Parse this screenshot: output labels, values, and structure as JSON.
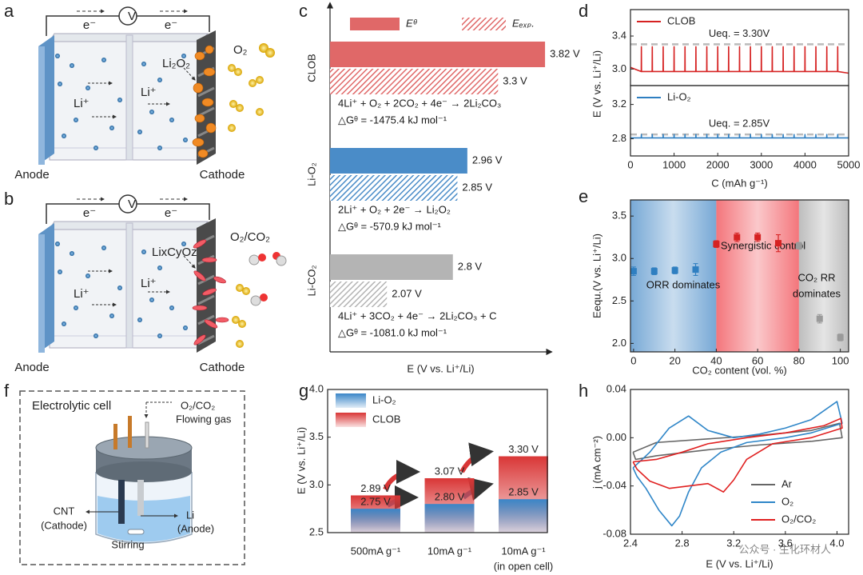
{
  "panel_labels": [
    "a",
    "b",
    "c",
    "d",
    "e",
    "f",
    "g",
    "h"
  ],
  "diagram_a": {
    "voltmeter": "V",
    "electrons": [
      "e⁻",
      "e⁻"
    ],
    "lithium_ions": [
      "Li⁺",
      "Li⁺"
    ],
    "product": "Li₂O₂",
    "gas": "O₂",
    "anode": "Anode",
    "cathode": "Cathode"
  },
  "diagram_b": {
    "voltmeter": "V",
    "electrons": [
      "e⁻",
      "e⁻"
    ],
    "lithium_ions": [
      "Li⁺",
      "Li⁺"
    ],
    "product": "LixCyOz",
    "gas": "O₂/CO₂",
    "anode": "Anode",
    "cathode": "Cathode"
  },
  "diagram_f": {
    "title": "Electrolytic cell",
    "gas": [
      "O₂/CO₂",
      "Flowing gas"
    ],
    "cathode": [
      "CNT",
      "(Cathode)"
    ],
    "anode": [
      "Li",
      "(Anode)"
    ],
    "stirring": "Stirring"
  },
  "watermark": "公众号 · 生化环材人",
  "chart_data": [
    {
      "type": "bar",
      "orientation": "horizontal",
      "categories": [
        "CLOB",
        "Li-O₂",
        "Li-CO₂"
      ],
      "category_colors": [
        "#e06868",
        "#4a8cc8",
        "#b4b4b4"
      ],
      "series": [
        {
          "name": "Eᶿ",
          "color": "#e06868",
          "values": [
            3.82,
            2.96,
            2.8
          ],
          "value_labels": [
            "3.82 V",
            "2.96 V",
            "2.8 V"
          ]
        },
        {
          "name": "Eₑₓₚ.",
          "color": "#e06868",
          "hatch": true,
          "values": [
            3.3,
            2.85,
            2.07
          ],
          "value_labels": [
            "3.3 V",
            "2.85 V",
            "2.07 V"
          ]
        }
      ],
      "annotations": [
        [
          "4Li⁺ + O₂ + 2CO₂ + 4e⁻ → 2Li₂CO₃",
          "△Gᶿ = -1475.4 kJ mol⁻¹"
        ],
        [
          "2Li⁺ + O₂ + 2e⁻ → Li₂O₂",
          "△Gᶿ = -570.9 kJ mol⁻¹"
        ],
        [
          "4Li⁺ + 3CO₂ + 4e⁻ → 2Li₂CO₃ + C",
          "△Gᶿ = -1081.0 kJ mol⁻¹"
        ]
      ],
      "xlim": [
        1.44,
        3.89
      ],
      "xlabel": "E (V vs. Li⁺/Li)"
    },
    {
      "type": "line",
      "legend": "upper left",
      "series": [
        {
          "name": "CLOB",
          "color": "#d62222",
          "x": [
            0,
            247,
            250,
            253,
            497,
            500,
            503,
            747,
            750,
            753,
            997,
            1000,
            1003,
            1247,
            1250,
            1253,
            1497,
            1500,
            1503,
            1747,
            1750,
            1753,
            1997,
            2000,
            2003,
            2247,
            2250,
            2253,
            2497,
            2500,
            2503,
            2747,
            2750,
            2753,
            2997,
            3000,
            3003,
            3247,
            3250,
            3253,
            3497,
            3500,
            3503,
            3747,
            3750,
            3753,
            3997,
            4000,
            4003,
            4247,
            4250,
            4253,
            4497,
            4500,
            4503,
            4747,
            4750,
            4753,
            5000
          ],
          "values": [
            3.02,
            2.97,
            3.27,
            2.97,
            2.97,
            3.27,
            2.97,
            2.97,
            3.27,
            2.97,
            2.97,
            3.27,
            2.97,
            2.97,
            3.27,
            2.97,
            2.97,
            3.27,
            2.97,
            2.97,
            3.27,
            2.97,
            2.97,
            3.27,
            2.97,
            2.97,
            3.27,
            2.97,
            2.97,
            3.27,
            2.97,
            2.97,
            3.27,
            2.97,
            2.97,
            3.27,
            2.97,
            2.97,
            3.27,
            2.97,
            2.97,
            3.27,
            2.97,
            2.97,
            3.27,
            2.97,
            2.97,
            3.27,
            2.97,
            2.97,
            3.27,
            2.97,
            2.97,
            3.27,
            2.97,
            2.97,
            3.27,
            2.97,
            2.95
          ]
        }
      ],
      "ref_line": 3.3,
      "ref_color": "#bbbbbb",
      "annotation": "Ueq. = 3.30V",
      "xlim": [
        0,
        5000
      ],
      "ylim": [
        2.8,
        3.72
      ],
      "yticks": [
        {
          "value": 3,
          "label": "3.0"
        },
        {
          "value": 3.4,
          "label": "3.4"
        }
      ],
      "ylabel": "E (V vs. Li⁺/Li)"
    },
    {
      "type": "line",
      "legend": "upper left",
      "series": [
        {
          "name": "Li-O₂",
          "color": "#2f7fc1",
          "x": [
            0,
            247,
            250,
            253,
            497,
            500,
            503,
            747,
            750,
            753,
            997,
            1000,
            1003,
            1247,
            1250,
            1253,
            1497,
            1500,
            1503,
            1747,
            1750,
            1753,
            1997,
            2000,
            2003,
            2247,
            2250,
            2253,
            2497,
            2500,
            2503,
            2747,
            2750,
            2753,
            2997,
            3000,
            3003,
            3247,
            3250,
            3253,
            3497,
            3500,
            3503,
            3747,
            3750,
            3753,
            3997,
            4000,
            4003,
            4247,
            4250,
            4253,
            4497,
            4500,
            4503,
            4747,
            4750,
            4753,
            5000
          ],
          "values": [
            2.81,
            2.81,
            2.85,
            2.81,
            2.81,
            2.85,
            2.81,
            2.81,
            2.85,
            2.81,
            2.81,
            2.85,
            2.81,
            2.81,
            2.85,
            2.81,
            2.81,
            2.85,
            2.81,
            2.81,
            2.85,
            2.81,
            2.81,
            2.85,
            2.81,
            2.81,
            2.85,
            2.81,
            2.81,
            2.85,
            2.81,
            2.81,
            2.85,
            2.81,
            2.81,
            2.85,
            2.81,
            2.81,
            2.85,
            2.81,
            2.81,
            2.85,
            2.81,
            2.81,
            2.85,
            2.81,
            2.81,
            2.85,
            2.81,
            2.81,
            2.85,
            2.81,
            2.81,
            2.85,
            2.81,
            2.81,
            2.85,
            2.81,
            2.81
          ]
        }
      ],
      "ref_line": 2.85,
      "ref_color": "#bbbbbb",
      "annotation": "Ueq. = 2.85V",
      "xlim": [
        0,
        5000
      ],
      "ylim": [
        2.6,
        3.42
      ],
      "xticks": [
        0,
        1000,
        2000,
        3000,
        4000,
        5000
      ],
      "yticks": [
        {
          "value": 2.8,
          "label": "2.8"
        },
        {
          "value": 3.2,
          "label": "3.2"
        }
      ],
      "xlabel": "C (mAh g⁻¹)"
    },
    {
      "type": "scatter",
      "x": [
        0,
        10,
        20,
        30,
        40,
        50,
        60,
        70,
        80,
        90,
        100
      ],
      "values": [
        2.85,
        2.85,
        2.86,
        2.87,
        3.17,
        3.25,
        3.25,
        3.18,
        3.15,
        2.29,
        2.07
      ],
      "errors": [
        0.05,
        0.04,
        0.04,
        0.07,
        0.04,
        0.05,
        0.05,
        0.1,
        0.04,
        0.05,
        0.04
      ],
      "point_colors": [
        "#2f7fc1",
        "#2f7fc1",
        "#2f7fc1",
        "#2f7fc1",
        "#d62222",
        "#d62222",
        "#d62222",
        "#d62222",
        "#9a9a9a",
        "#9a9a9a",
        "#9a9a9a"
      ],
      "regions": [
        {
          "range": [
            -1.5,
            40
          ],
          "color": "#4a8cc8",
          "label": [
            "ORR dominates"
          ]
        },
        {
          "range": [
            40,
            80
          ],
          "color": "#f04850",
          "label": [
            "Synergistic control"
          ]
        },
        {
          "range": [
            80,
            104
          ],
          "color": "#a8a8a8",
          "label": [
            "CO₂ RR",
            "dominates"
          ]
        }
      ],
      "xlim": [
        -1.5,
        104
      ],
      "ylim": [
        1.9,
        3.69
      ],
      "xticks": [
        0,
        20,
        40,
        60,
        80,
        100
      ],
      "yticks": [
        {
          "value": 2,
          "label": "2.0"
        },
        2.5,
        {
          "value": 3,
          "label": "3.0"
        },
        3.5
      ],
      "xlabel": "CO₂ content (vol. %)",
      "ylabel": "Eequ.(V vs. Li⁺/Li)"
    },
    {
      "type": "bar",
      "orientation": "vertical",
      "legend": "upper left",
      "categories": [
        [
          "500mA g⁻¹"
        ],
        [
          "10mA g⁻¹"
        ],
        [
          "10mA g⁻¹",
          "(in open cell)"
        ]
      ],
      "series": [
        {
          "name": "Li-O₂",
          "color": "#3a86c8",
          "values": [
            2.75,
            2.8,
            2.85
          ],
          "value_labels": [
            "2.75 V",
            "2.80 V",
            "2.85 V"
          ]
        },
        {
          "name": "CLOB",
          "color": "#d93636",
          "values": [
            2.89,
            3.07,
            3.3
          ],
          "value_labels": [
            "2.89 V",
            "3.07 V",
            "3.30 V"
          ]
        }
      ],
      "ylim": [
        2.5,
        4.0
      ],
      "yticks": [
        2.5,
        {
          "value": 3,
          "label": "3.0"
        },
        3.5,
        {
          "value": 4,
          "label": "4.0"
        }
      ],
      "ylabel": "E (V vs. Li⁺/Li)"
    },
    {
      "type": "line",
      "legend": "lower right",
      "series": [
        {
          "name": "Ar",
          "color": "#666666",
          "x": [
            2.42,
            2.6,
            3.0,
            3.4,
            3.8,
            4.02,
            4.04,
            3.8,
            3.4,
            3.0,
            2.6,
            2.44,
            2.42
          ],
          "values": [
            -0.012,
            -0.004,
            -0.001,
            0.002,
            0.006,
            0.012,
            0.0,
            -0.003,
            -0.006,
            -0.01,
            -0.015,
            -0.018,
            -0.012
          ]
        },
        {
          "name": "O₂",
          "color": "#2f86c8",
          "x": [
            2.42,
            2.55,
            2.7,
            2.85,
            3.0,
            3.2,
            3.4,
            3.6,
            3.8,
            4.0,
            4.04,
            3.8,
            3.6,
            3.3,
            3.1,
            2.95,
            2.85,
            2.78,
            2.72,
            2.62,
            2.52,
            2.45,
            2.42
          ],
          "values": [
            -0.025,
            -0.012,
            0.008,
            0.018,
            0.006,
            0.0,
            0.003,
            0.008,
            0.015,
            0.03,
            0.012,
            0.004,
            0.0,
            -0.004,
            -0.012,
            -0.025,
            -0.045,
            -0.065,
            -0.073,
            -0.06,
            -0.042,
            -0.032,
            -0.025
          ]
        },
        {
          "name": "O₂/CO₂",
          "color": "#e02020",
          "x": [
            2.42,
            2.6,
            2.8,
            3.0,
            3.3,
            3.6,
            3.9,
            4.03,
            4.04,
            3.8,
            3.5,
            3.3,
            3.2,
            3.12,
            3.0,
            2.85,
            2.7,
            2.55,
            2.45,
            2.42
          ],
          "values": [
            -0.02,
            -0.018,
            -0.012,
            -0.005,
            0.0,
            0.004,
            0.01,
            0.016,
            0.008,
            0.0,
            -0.005,
            -0.018,
            -0.035,
            -0.045,
            -0.038,
            -0.04,
            -0.042,
            -0.036,
            -0.026,
            -0.02
          ]
        }
      ],
      "xlim": [
        2.4,
        4.09
      ],
      "ylim": [
        -0.08,
        0.04
      ],
      "xticks": [
        2.4,
        2.8,
        3.2,
        3.6,
        {
          "value": 4,
          "label": "4.0"
        }
      ],
      "yticks": [
        -0.08,
        -0.04,
        {
          "value": 0,
          "label": "0.00"
        },
        0.04
      ],
      "xlabel": "E (V vs. Li⁺/Li)",
      "ylabel": "j (mA cm⁻²)"
    }
  ]
}
